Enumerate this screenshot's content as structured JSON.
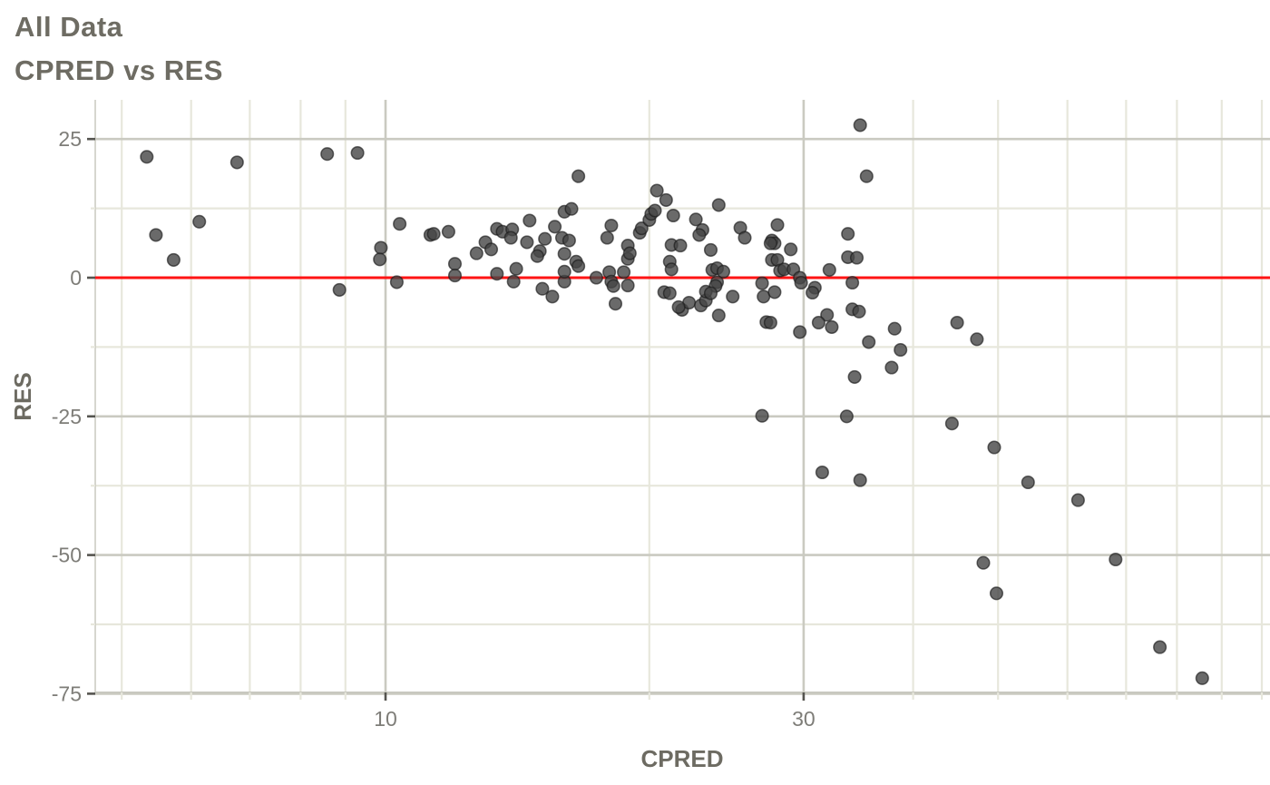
{
  "title": "All Data",
  "subtitle": "CPRED vs RES",
  "colors": {
    "title_text": "#6e6c63",
    "tick_label_text": "#7e7d78",
    "axis_title_text": "#6d6b62",
    "grid_major": "#cacac1",
    "grid_minor": "#e7e7dc",
    "axis_line": "#c8c8bf",
    "tick_major": "#55544f",
    "reference_line": "#ff1414",
    "point_fill": "#454545",
    "point_stroke": "#1a1a1a"
  },
  "chart_data": {
    "type": "scatter",
    "title": "All Data",
    "subtitle": "CPRED vs RES",
    "xlabel": "CPRED",
    "ylabel": "RES",
    "x_scale": "log10",
    "grid": true,
    "legend": "none",
    "xlim": [
      4.66,
      102
    ],
    "ylim": [
      -75,
      32
    ],
    "x_ticks_major": [
      10,
      30
    ],
    "x_tick_labels": [
      "10",
      "30"
    ],
    "x_ticks_minor": [
      5,
      6,
      7,
      8,
      9,
      20,
      40,
      50,
      60,
      70,
      80,
      90,
      100
    ],
    "y_ticks_major": [
      25,
      0,
      -25,
      -50,
      -75
    ],
    "y_tick_labels": [
      "25",
      "0",
      "-25",
      "-50",
      "-75"
    ],
    "y_ticks_minor": [
      12.5,
      -12.5,
      -37.5,
      -62.5
    ],
    "reference_line": {
      "y": 0
    },
    "points": [
      [
        5.34,
        21.8
      ],
      [
        6.77,
        20.8
      ],
      [
        8.58,
        22.3
      ],
      [
        9.29,
        22.5
      ],
      [
        6.13,
        10.1
      ],
      [
        5.47,
        7.7
      ],
      [
        5.73,
        3.2
      ],
      [
        8.86,
        -2.2
      ],
      [
        9.88,
        5.4
      ],
      [
        9.85,
        3.3
      ],
      [
        10.38,
        9.7
      ],
      [
        10.3,
        -0.8
      ],
      [
        11.25,
        7.7
      ],
      [
        11.35,
        7.9
      ],
      [
        11.8,
        8.3
      ],
      [
        12.0,
        2.5
      ],
      [
        12.0,
        0.4
      ],
      [
        12.7,
        4.4
      ],
      [
        13.0,
        6.4
      ],
      [
        13.2,
        5.1
      ],
      [
        13.4,
        8.8
      ],
      [
        13.6,
        8.3
      ],
      [
        13.95,
        8.7
      ],
      [
        13.9,
        7.2
      ],
      [
        13.4,
        0.7
      ],
      [
        14.1,
        1.6
      ],
      [
        14.0,
        -0.7
      ],
      [
        14.5,
        6.4
      ],
      [
        14.6,
        10.3
      ],
      [
        15.0,
        4.8
      ],
      [
        14.9,
        3.9
      ],
      [
        15.2,
        7.0
      ],
      [
        15.1,
        -2.0
      ],
      [
        15.5,
        -3.4
      ],
      [
        15.6,
        9.2
      ],
      [
        15.9,
        7.2
      ],
      [
        16.0,
        11.9
      ],
      [
        16.3,
        12.4
      ],
      [
        16.6,
        18.3
      ],
      [
        16.0,
        4.3
      ],
      [
        16.2,
        6.7
      ],
      [
        16.5,
        2.9
      ],
      [
        16.6,
        2.1
      ],
      [
        16.0,
        -0.7
      ],
      [
        16.0,
        1.1
      ],
      [
        17.4,
        0.0
      ],
      [
        17.9,
        7.2
      ],
      [
        18.1,
        9.4
      ],
      [
        18.0,
        1.0
      ],
      [
        18.1,
        -0.7
      ],
      [
        18.2,
        -1.5
      ],
      [
        18.3,
        -4.7
      ],
      [
        18.7,
        1.0
      ],
      [
        18.9,
        3.4
      ],
      [
        18.9,
        5.8
      ],
      [
        19.0,
        4.4
      ],
      [
        18.9,
        -1.4
      ],
      [
        19.5,
        8.1
      ],
      [
        19.6,
        8.9
      ],
      [
        20.0,
        10.4
      ],
      [
        20.1,
        11.5
      ],
      [
        20.4,
        15.7
      ],
      [
        20.9,
        14.0
      ],
      [
        20.3,
        12.1
      ],
      [
        21.3,
        11.2
      ],
      [
        21.2,
        5.9
      ],
      [
        21.7,
        5.8
      ],
      [
        21.1,
        2.9
      ],
      [
        21.2,
        1.5
      ],
      [
        20.8,
        -2.6
      ],
      [
        21.1,
        -2.8
      ],
      [
        21.8,
        -5.8
      ],
      [
        22.2,
        -4.5
      ],
      [
        21.6,
        -5.3
      ],
      [
        22.9,
        -5.0
      ],
      [
        23.2,
        -4.1
      ],
      [
        24.9,
        -3.4
      ],
      [
        24.0,
        -6.8
      ],
      [
        34.8,
        27.5
      ],
      [
        35.4,
        18.3
      ],
      [
        24.0,
        13.1
      ],
      [
        22.6,
        10.5
      ],
      [
        23.0,
        8.6
      ],
      [
        25.4,
        9.0
      ],
      [
        25.7,
        7.2
      ],
      [
        28.0,
        9.5
      ],
      [
        27.6,
        6.7
      ],
      [
        27.8,
        6.2
      ],
      [
        22.8,
        7.7
      ],
      [
        23.5,
        5.0
      ],
      [
        23.6,
        1.4
      ],
      [
        23.9,
        1.7
      ],
      [
        24.3,
        1.1
      ],
      [
        23.9,
        -0.8
      ],
      [
        23.8,
        -1.5
      ],
      [
        23.2,
        -2.5
      ],
      [
        23.5,
        -2.8
      ],
      [
        26.9,
        -1.0
      ],
      [
        27.0,
        -3.4
      ],
      [
        27.8,
        -2.6
      ],
      [
        27.2,
        -8.0
      ],
      [
        27.5,
        -8.1
      ],
      [
        27.6,
        3.2
      ],
      [
        28.0,
        3.2
      ],
      [
        27.5,
        6.2
      ],
      [
        28.2,
        1.3
      ],
      [
        28.5,
        1.5
      ],
      [
        29.0,
        5.1
      ],
      [
        29.2,
        1.5
      ],
      [
        29.7,
        0.0
      ],
      [
        29.8,
        -0.9
      ],
      [
        30.9,
        -1.8
      ],
      [
        32.1,
        1.4
      ],
      [
        33.7,
        3.7
      ],
      [
        34.5,
        3.6
      ],
      [
        34.1,
        -0.9
      ],
      [
        33.7,
        7.9
      ],
      [
        30.7,
        -2.7
      ],
      [
        34.1,
        -5.7
      ],
      [
        34.7,
        -6.1
      ],
      [
        31.9,
        -6.7
      ],
      [
        31.2,
        -8.1
      ],
      [
        32.3,
        -8.9
      ],
      [
        29.7,
        -9.8
      ],
      [
        38.1,
        -9.2
      ],
      [
        35.6,
        -11.6
      ],
      [
        38.7,
        -13.0
      ],
      [
        37.8,
        -16.2
      ],
      [
        34.3,
        -17.9
      ],
      [
        26.9,
        -24.9
      ],
      [
        33.6,
        -25.0
      ],
      [
        44.9,
        -8.1
      ],
      [
        47.3,
        -11.1
      ],
      [
        44.3,
        -26.3
      ],
      [
        49.5,
        -30.6
      ],
      [
        31.5,
        -35.1
      ],
      [
        34.8,
        -36.5
      ],
      [
        54.1,
        -36.9
      ],
      [
        61.7,
        -40.1
      ],
      [
        48.1,
        -51.4
      ],
      [
        49.8,
        -56.9
      ],
      [
        68.1,
        -50.8
      ],
      [
        76.5,
        -66.6
      ],
      [
        85.5,
        -72.2
      ]
    ]
  }
}
